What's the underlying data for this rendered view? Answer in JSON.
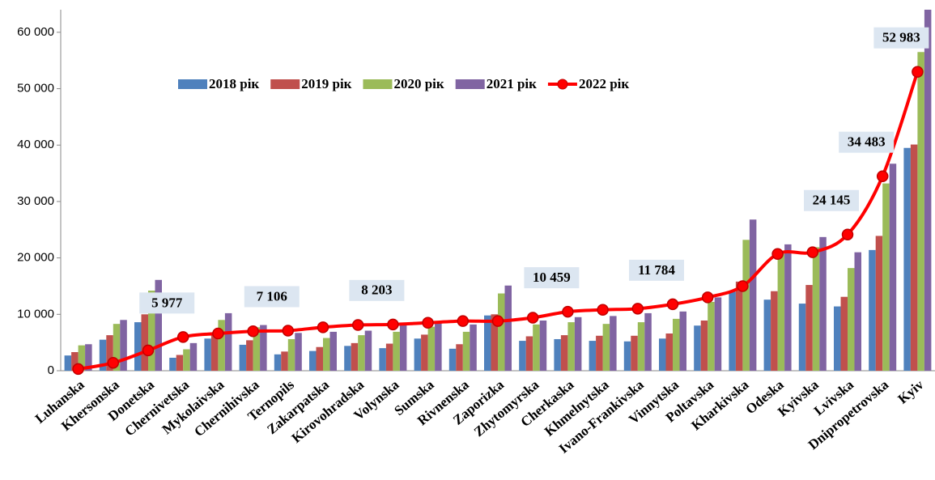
{
  "chart_data": {
    "type": "bar_line",
    "categories": [
      "Luhanska",
      "Khersonska",
      "Donetska",
      "Chernivetska",
      "Mykolaivska",
      "Chernihivska",
      "Ternopils",
      "Zakarpatska",
      "Kirovohradska",
      "Volynska",
      "Sumska",
      "Rivnenska",
      "Zaporizka",
      "Zhytomyrska",
      "Cherkaska",
      "Khmelnytska",
      "Ivano-Frankivska",
      "Vinnytska",
      "Poltavska",
      "Kharkivska",
      "Odeska",
      "Kyivska",
      "Lvivska",
      "Dnipropetrovska",
      "Kyiv"
    ],
    "series": [
      {
        "name": "2018 рік",
        "color": "#4f81bd",
        "values": [
          2700,
          5500,
          8600,
          2300,
          5700,
          4600,
          2900,
          3500,
          4400,
          4000,
          5700,
          3900,
          9800,
          5300,
          5600,
          5300,
          5200,
          5700,
          8000,
          14000,
          12600,
          11900,
          11400,
          21400,
          39500
        ]
      },
      {
        "name": "2019 рік",
        "color": "#c0504d",
        "values": [
          3300,
          6300,
          10000,
          2800,
          6400,
          5400,
          3400,
          4200,
          4900,
          4800,
          6400,
          4700,
          10000,
          6100,
          6300,
          6200,
          6200,
          6600,
          8900,
          15800,
          14100,
          15200,
          13100,
          23900,
          40100
        ]
      },
      {
        "name": "2020 рік",
        "color": "#9bbb59",
        "values": [
          4500,
          8300,
          14200,
          3800,
          9000,
          7700,
          5600,
          5800,
          6300,
          6900,
          7800,
          6900,
          13700,
          8200,
          8600,
          8300,
          8600,
          9200,
          12200,
          23200,
          20700,
          21900,
          18200,
          33200,
          56500
        ]
      },
      {
        "name": "2021 рік",
        "color": "#8064a2",
        "values": [
          4700,
          9000,
          16100,
          4900,
          10200,
          8100,
          6700,
          6900,
          7100,
          8200,
          8600,
          8200,
          15100,
          8900,
          9500,
          9700,
          10200,
          10500,
          13000,
          26800,
          22400,
          23700,
          21000,
          36700,
          64000
        ]
      },
      {
        "name": "2022 рік",
        "color": "#ff0000",
        "type": "line",
        "values": [
          300,
          1400,
          3600,
          5977,
          6600,
          7000,
          7106,
          7700,
          8100,
          8203,
          8500,
          8800,
          8800,
          9400,
          10459,
          10800,
          11000,
          11784,
          13000,
          15000,
          20700,
          21000,
          24145,
          34483,
          52983
        ],
        "value_labels": [
          null,
          null,
          null,
          "5 977",
          null,
          null,
          "7 106",
          null,
          null,
          "8 203",
          null,
          null,
          null,
          null,
          "10 459",
          null,
          null,
          "11 784",
          null,
          null,
          null,
          null,
          "24 145",
          "34 483",
          "52 983"
        ]
      }
    ],
    "ylim": [
      0,
      64000
    ],
    "yticks": [
      0,
      {
        "value": 10000,
        "label": "10 000"
      },
      {
        "value": 20000,
        "label": "20 000"
      },
      {
        "value": 30000,
        "label": "30 000"
      },
      {
        "value": 40000,
        "label": "40 000"
      },
      {
        "value": 50000,
        "label": "50 000"
      },
      {
        "value": 60000,
        "label": "60 000"
      }
    ],
    "legend": "top"
  }
}
